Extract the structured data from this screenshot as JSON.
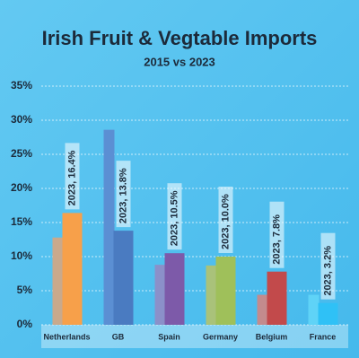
{
  "chart_data": {
    "type": "bar",
    "title": "Irish Fruit & Vegtable Imports",
    "subtitle": "2015 vs 2023",
    "categories": [
      "Netherlands",
      "GB",
      "Spain",
      "Germany",
      "Belgium",
      "France"
    ],
    "series": [
      {
        "colors": [
          "#c9a98c",
          "#5b8fd3",
          "#8b90c9",
          "#a9c27a",
          "#c38b8d",
          "#5fd3f7"
        ],
        "values": [
          12.8,
          28.6,
          8.8,
          8.7,
          4.4,
          4.4
        ]
      },
      {
        "colors": [
          "#f7a04a",
          "#4a7bc1",
          "#7d5aa9",
          "#9fc05a",
          "#c24a4b",
          "#2fc1f6"
        ],
        "values": [
          16.4,
          13.8,
          10.5,
          10.0,
          7.8,
          3.2
        ],
        "value_labels": [
          "2023, 16.4%",
          "2023, 13.8%",
          "2023, 10.5%",
          "2023, 10.0%",
          "2023, 7.8%",
          "2023, 3.2%"
        ]
      }
    ],
    "ylim": [
      0,
      35
    ],
    "yticks": [
      {
        "value": 0,
        "label": "0%"
      },
      {
        "value": 5,
        "label": "5%"
      },
      {
        "value": 10,
        "label": "10%"
      },
      {
        "value": 15,
        "label": "15%"
      },
      {
        "value": 20,
        "label": "20%"
      },
      {
        "value": 25,
        "label": "25%"
      },
      {
        "value": 30,
        "label": "30%"
      },
      {
        "value": 35,
        "label": "35%"
      }
    ],
    "grid": true
  }
}
